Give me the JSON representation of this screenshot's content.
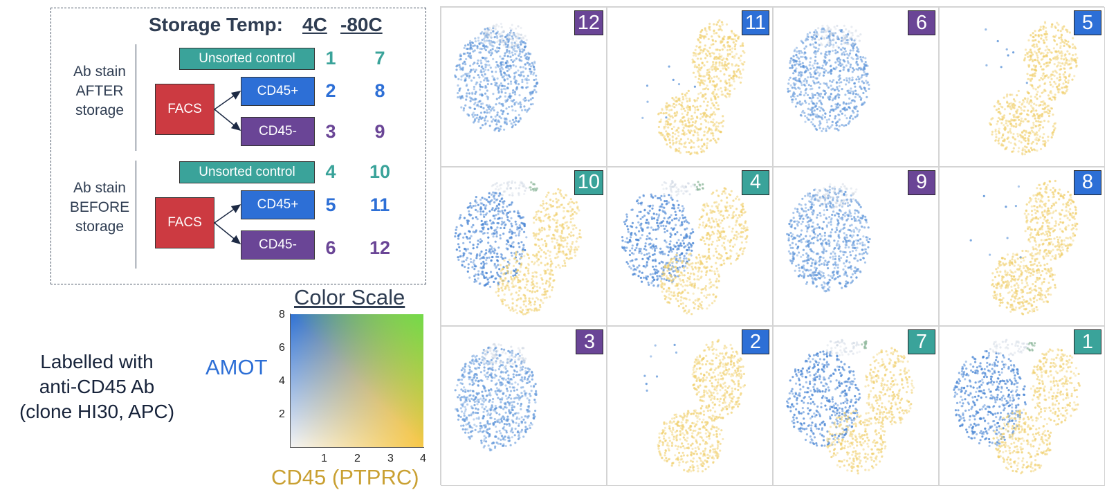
{
  "header": {
    "title": "Storage Temp:",
    "col_4c": "4C",
    "col_80c": "-80C"
  },
  "groups": [
    {
      "label": "Ab stain AFTER storage",
      "lines": [
        "Ab stain",
        "AFTER",
        "storage"
      ]
    },
    {
      "label": "Ab stain BEFORE storage",
      "lines": [
        "Ab stain",
        "BEFORE",
        "storage"
      ]
    }
  ],
  "boxes": {
    "unsorted": "Unsorted control",
    "facs": "FACS",
    "cd45pos": "CD45+",
    "cd45neg": "CD45-"
  },
  "rows": [
    {
      "a": "1",
      "b": "7",
      "color": "#3aa39a"
    },
    {
      "a": "2",
      "b": "8",
      "color": "#2d6fd6"
    },
    {
      "a": "3",
      "b": "9",
      "color": "#6a4596"
    },
    {
      "a": "4",
      "b": "10",
      "color": "#3aa39a"
    },
    {
      "a": "5",
      "b": "11",
      "color": "#2d6fd6"
    },
    {
      "a": "6",
      "b": "12",
      "color": "#6a4596"
    }
  ],
  "color_scale": {
    "title": "Color Scale",
    "y_label": "AMOT",
    "x_label": "CD45 (PTPRC)",
    "y_ticks": [
      "2",
      "4",
      "6",
      "8"
    ],
    "x_ticks": [
      "1",
      "2",
      "3",
      "4"
    ]
  },
  "labelled": {
    "line1": "Labelled with",
    "line2": "anti-CD45 Ab",
    "line3": "(clone HI30, APC)"
  },
  "colors": {
    "teal": "#3aa39a",
    "blue": "#2d6fd6",
    "purple": "#6a4596",
    "red": "#cc3a41",
    "yellow": "#f2c84b",
    "green": "#5fe04a"
  },
  "panels": [
    {
      "n": "12",
      "kind": "purple",
      "pattern": "blue"
    },
    {
      "n": "11",
      "kind": "blue",
      "pattern": "yellow"
    },
    {
      "n": "6",
      "kind": "purple",
      "pattern": "blue"
    },
    {
      "n": "5",
      "kind": "blue",
      "pattern": "yellow"
    },
    {
      "n": "10",
      "kind": "teal",
      "pattern": "mixed"
    },
    {
      "n": "4",
      "kind": "teal",
      "pattern": "mixed"
    },
    {
      "n": "9",
      "kind": "purple",
      "pattern": "blue"
    },
    {
      "n": "8",
      "kind": "blue",
      "pattern": "yellow"
    },
    {
      "n": "3",
      "kind": "purple",
      "pattern": "blue"
    },
    {
      "n": "2",
      "kind": "blue",
      "pattern": "yellow"
    },
    {
      "n": "7",
      "kind": "teal",
      "pattern": "mixed"
    },
    {
      "n": "1",
      "kind": "teal",
      "pattern": "mixed"
    }
  ]
}
